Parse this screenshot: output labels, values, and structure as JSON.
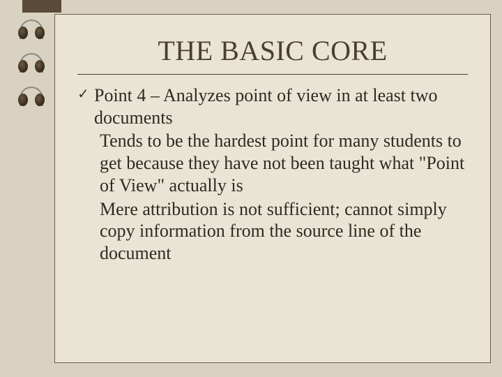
{
  "colors": {
    "background": "#d9d2c0",
    "page_bg": "#eae4d4",
    "border": "#6a5c46",
    "title_color": "#4a3f2f",
    "text_color": "#2e2a21",
    "tab_color": "#5a4a3a"
  },
  "typography": {
    "title_fontsize": 40,
    "body_fontsize": 26,
    "font_family": "Times New Roman"
  },
  "title": "THE BASIC CORE",
  "items": [
    {
      "text": "Point 4 – Analyzes point of view in at least two documents",
      "bullet": true
    },
    {
      "text": "Tends to be the hardest point for many students to get because they have not been taught what \"Point of View\" actually is",
      "bullet": false
    },
    {
      "text": "Mere attribution is not sufficient; cannot simply copy information from the source line of the document",
      "bullet": false
    }
  ]
}
